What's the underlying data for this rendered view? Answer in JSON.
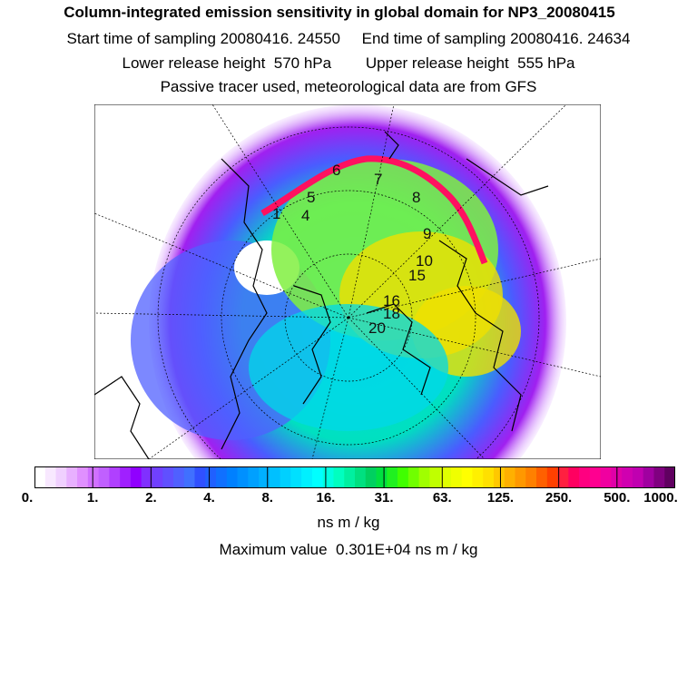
{
  "header": {
    "title": "Column-integrated emission sensitivity in global domain for NP3_20080415",
    "line2": "Start time of sampling 20080416. 24550     End time of sampling 20080416. 24634",
    "line3": "Lower release height  570 hPa        Upper release height  555 hPa",
    "line4": "Passive tracer used, meteorological data are from GFS"
  },
  "map": {
    "projection": "polar stereographic (north pole)",
    "trajectory_labels": [
      "1",
      "4",
      "5",
      "6",
      "7",
      "8",
      "9",
      "10",
      "15",
      "16",
      "18",
      "20"
    ],
    "colors": {
      "outer": "#a020f0",
      "low": "#4a5cff",
      "mid": "#00d8e8",
      "midhigh": "#80f040",
      "high": "#f0e000",
      "peak": "#ff1060",
      "coastline": "#000000",
      "grid": "#000000"
    }
  },
  "colorbar": {
    "tick_labels": [
      "0.",
      "1.",
      "2.",
      "4.",
      "8.",
      "16.",
      "31.",
      "63.",
      "125.",
      "250.",
      "500.",
      "1000."
    ],
    "colors": [
      "#ffffff",
      "#f8e8ff",
      "#f0d0ff",
      "#e8b0ff",
      "#e090ff",
      "#d070ff",
      "#c060ff",
      "#b040ff",
      "#a020ff",
      "#9000ff",
      "#8030ff",
      "#7040ff",
      "#6050ff",
      "#5060ff",
      "#4070ff",
      "#3050ff",
      "#2060ff",
      "#1070ff",
      "#0080ff",
      "#0090ff",
      "#00a0ff",
      "#00b0ff",
      "#00c0ff",
      "#00d0ff",
      "#00e0ff",
      "#00f0ff",
      "#00ffff",
      "#00ffe0",
      "#00ffc0",
      "#00f0a0",
      "#00e080",
      "#00d060",
      "#00e040",
      "#20f020",
      "#40ff00",
      "#70ff00",
      "#a0ff00",
      "#c0ff00",
      "#e0ff00",
      "#f0ff00",
      "#ffff00",
      "#fff000",
      "#ffe000",
      "#ffc800",
      "#ffb000",
      "#ff9800",
      "#ff8000",
      "#ff6000",
      "#ff4000",
      "#ff2040",
      "#ff0060",
      "#ff0080",
      "#ff0090",
      "#f000a0",
      "#e000a8",
      "#d000b0",
      "#c000b0",
      "#a000a0",
      "#800080",
      "#600060"
    ],
    "units": "ns m / kg"
  },
  "footer": {
    "max_value": "Maximum value  0.301E+04 ns m / kg"
  }
}
